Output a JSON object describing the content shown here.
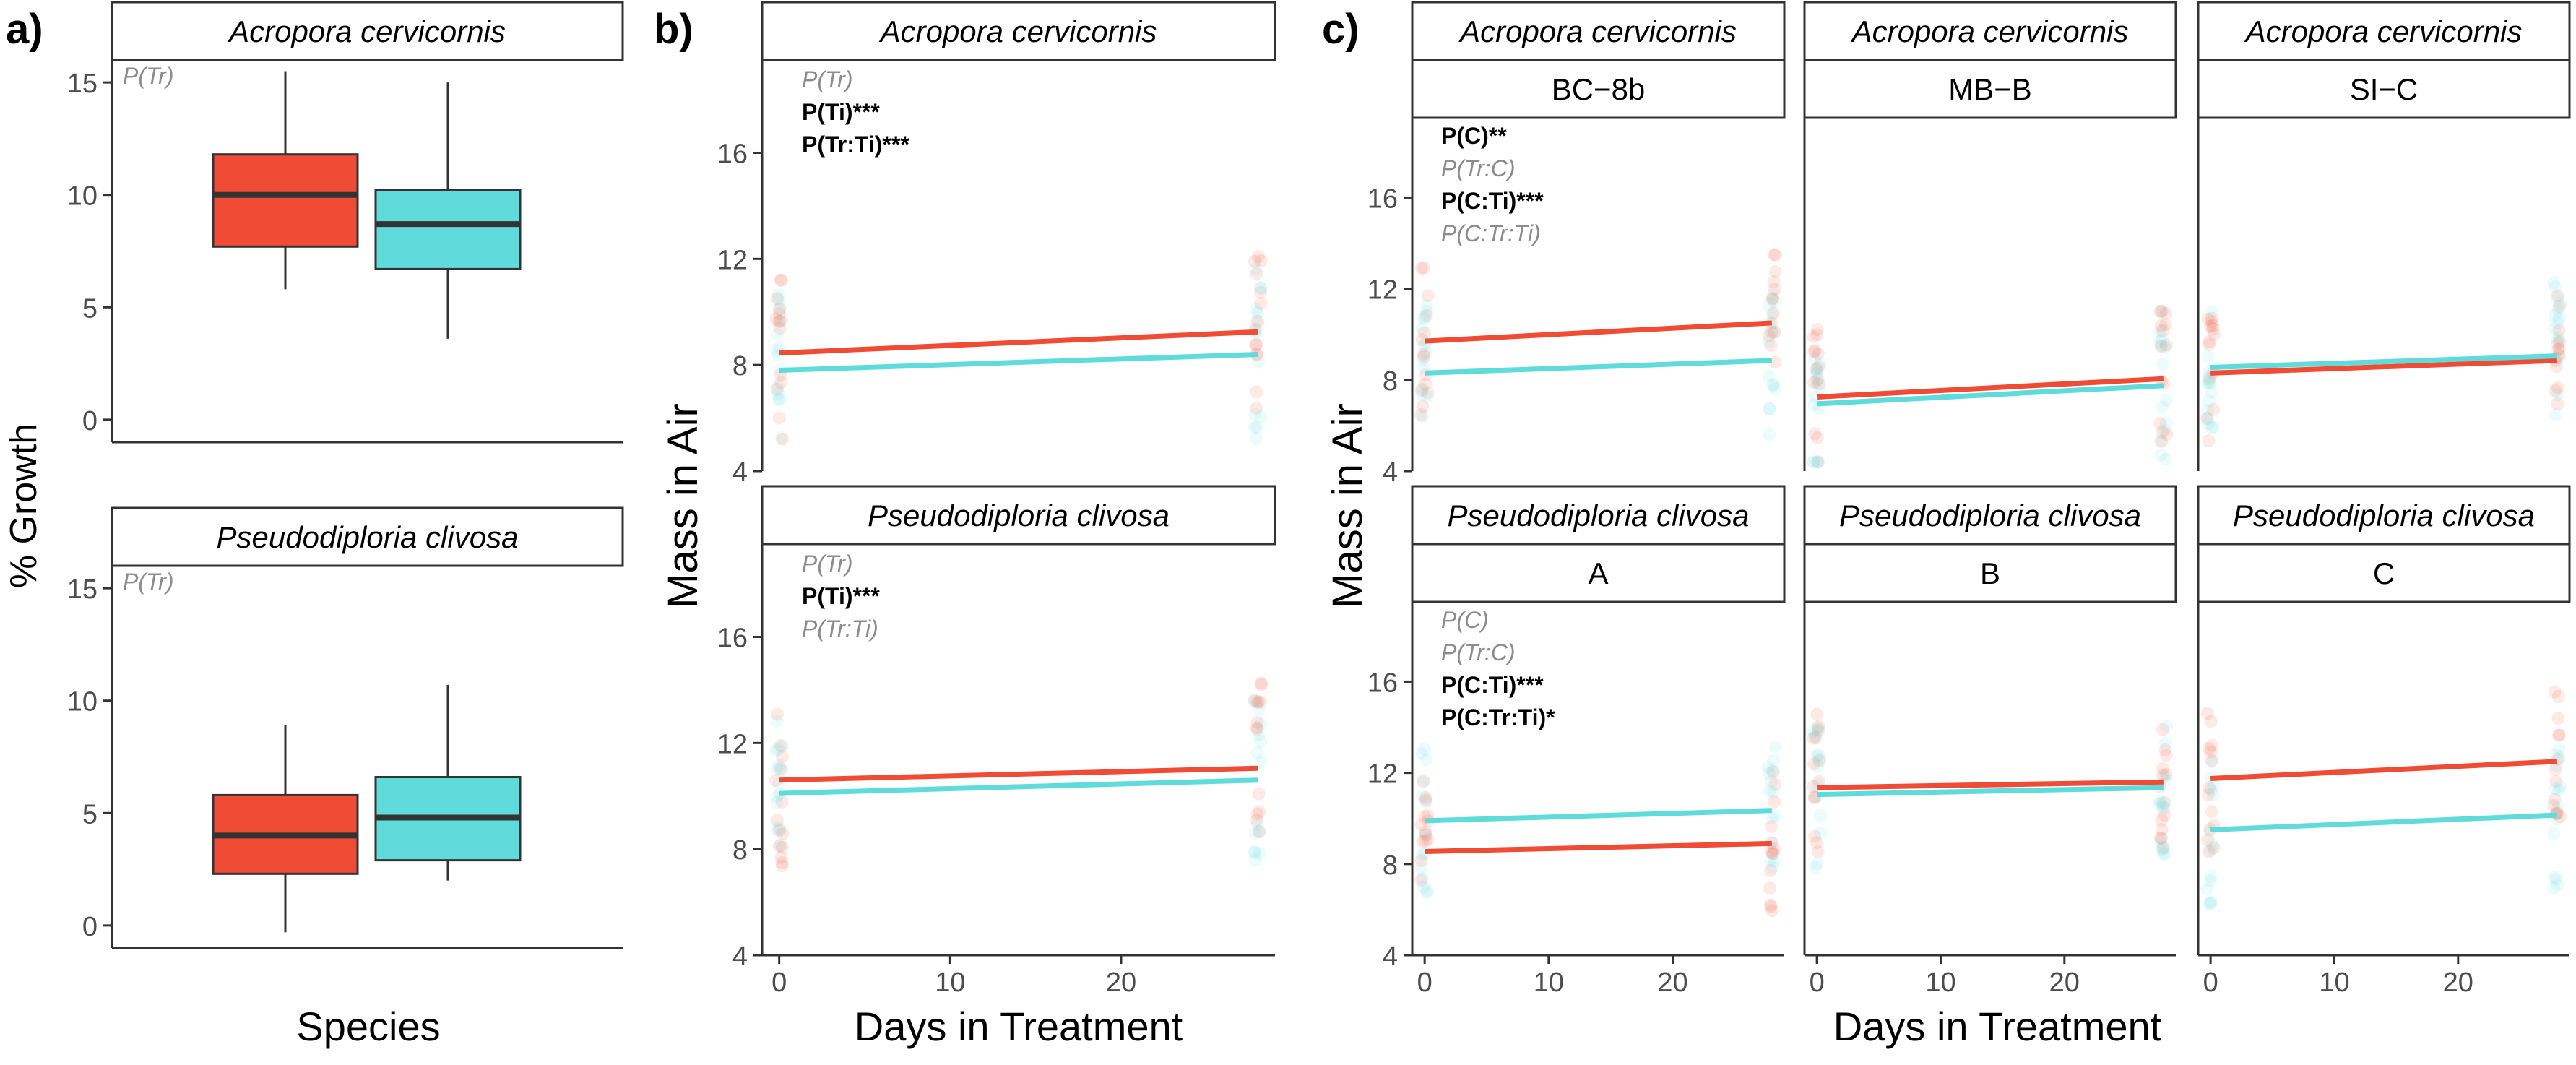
{
  "colors": {
    "red": "#ef4b35",
    "cyan": "#5fdbdb",
    "sig": "#000000",
    "nonsig": "#8c8c8c",
    "box_line": "#333333"
  },
  "panel_a": {
    "tag": "a)",
    "ylabel": "% Growth",
    "xlabel": "Species",
    "ylim": [
      -1,
      16
    ],
    "yticks": [
      "0",
      "5",
      "10",
      "15"
    ],
    "facets": [
      {
        "strip": "Acropora cervicornis",
        "stats": [
          {
            "text": "P(Tr)",
            "sig": false
          }
        ],
        "boxes": [
          {
            "color": "red",
            "min": 5.8,
            "q1": 7.7,
            "median": 10.0,
            "q3": 11.8,
            "max": 15.5
          },
          {
            "color": "cyan",
            "min": 3.6,
            "q1": 6.7,
            "median": 8.7,
            "q3": 10.2,
            "max": 15.0
          }
        ]
      },
      {
        "strip": "Pseudodiploria clivosa",
        "stats": [
          {
            "text": "P(Tr)",
            "sig": false
          }
        ],
        "boxes": [
          {
            "color": "red",
            "min": -0.3,
            "q1": 2.3,
            "median": 4.0,
            "q3": 5.8,
            "max": 8.9
          },
          {
            "color": "cyan",
            "min": 2.0,
            "q1": 2.9,
            "median": 4.8,
            "q3": 6.6,
            "max": 10.7
          }
        ]
      }
    ]
  },
  "panel_b": {
    "tag": "b)",
    "ylabel": "Mass in Air",
    "xlabel": "Days in Treatment",
    "xlim": [
      -1,
      29
    ],
    "ylim": [
      4,
      19.5
    ],
    "xticks": [
      "0",
      "10",
      "20"
    ],
    "yticks": [
      "4",
      "8",
      "12",
      "16"
    ],
    "facets": [
      {
        "strip": "Acropora cervicornis",
        "stats": [
          {
            "text": "P(Tr)",
            "sig": false
          },
          {
            "text": "P(Ti)***",
            "sig": true
          },
          {
            "text": "P(Tr:Ti)***",
            "sig": true
          }
        ],
        "lines": [
          {
            "color": "red",
            "y0": 8.45,
            "y1": 9.25
          },
          {
            "color": "cyan",
            "y0": 7.8,
            "y1": 8.4
          }
        ]
      },
      {
        "strip": "Pseudodiploria clivosa",
        "stats": [
          {
            "text": "P(Tr)",
            "sig": false
          },
          {
            "text": "P(Ti)***",
            "sig": true
          },
          {
            "text": "P(Tr:Ti)",
            "sig": false
          }
        ],
        "lines": [
          {
            "color": "red",
            "y0": 10.6,
            "y1": 11.05
          },
          {
            "color": "cyan",
            "y0": 10.1,
            "y1": 10.6
          }
        ]
      }
    ]
  },
  "panel_c": {
    "tag": "c)",
    "ylabel": "Mass in Air",
    "xlabel": "Days in Treatment",
    "xlim": [
      -1,
      29
    ],
    "ylim": [
      4,
      19.5
    ],
    "xticks": [
      "0",
      "10",
      "20"
    ],
    "yticks": [
      "4",
      "8",
      "12",
      "16"
    ],
    "facets": [
      {
        "species": "Acropora cervicornis",
        "site": "BC−8b",
        "stats": [
          {
            "text": "P(C)**",
            "sig": true
          },
          {
            "text": "P(Tr:C)",
            "sig": false
          },
          {
            "text": "P(C:Ti)***",
            "sig": true
          },
          {
            "text": "P(C:Tr:Ti)",
            "sig": false
          }
        ],
        "lines": [
          {
            "color": "red",
            "y0": 9.7,
            "y1": 10.5
          },
          {
            "color": "cyan",
            "y0": 8.3,
            "y1": 8.85
          }
        ]
      },
      {
        "species": "Acropora cervicornis",
        "site": "MB−B",
        "stats": [],
        "lines": [
          {
            "color": "red",
            "y0": 7.25,
            "y1": 8.05
          },
          {
            "color": "cyan",
            "y0": 6.95,
            "y1": 7.75
          }
        ]
      },
      {
        "species": "Acropora cervicornis",
        "site": "SI−C",
        "stats": [],
        "lines": [
          {
            "color": "red",
            "y0": 8.3,
            "y1": 8.85
          },
          {
            "color": "cyan",
            "y0": 8.55,
            "y1": 9.05
          }
        ]
      },
      {
        "species": "Pseudodiploria clivosa",
        "site": "A",
        "stats": [
          {
            "text": "P(C)",
            "sig": false
          },
          {
            "text": "P(Tr:C)",
            "sig": false
          },
          {
            "text": "P(C:Ti)***",
            "sig": true
          },
          {
            "text": "P(C:Tr:Ti)*",
            "sig": true
          }
        ],
        "lines": [
          {
            "color": "red",
            "y0": 8.55,
            "y1": 8.9
          },
          {
            "color": "cyan",
            "y0": 9.9,
            "y1": 10.35
          }
        ]
      },
      {
        "species": "Pseudodiploria clivosa",
        "site": "B",
        "stats": [],
        "lines": [
          {
            "color": "red",
            "y0": 11.35,
            "y1": 11.6
          },
          {
            "color": "cyan",
            "y0": 11.05,
            "y1": 11.35
          }
        ]
      },
      {
        "species": "Pseudodiploria clivosa",
        "site": "C",
        "stats": [],
        "lines": [
          {
            "color": "red",
            "y0": 11.75,
            "y1": 12.5
          },
          {
            "color": "cyan",
            "y0": 9.5,
            "y1": 10.15
          }
        ]
      }
    ]
  }
}
